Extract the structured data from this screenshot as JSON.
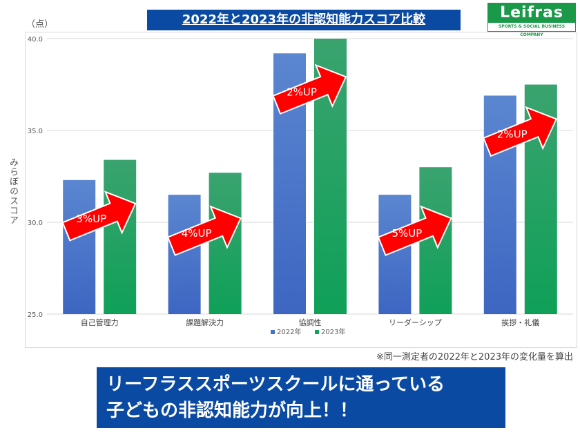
{
  "title": "2022年と2023年の非認知能力スコア比較",
  "logo": {
    "name": "Leifras",
    "tagline": "SPORTS & SOCIAL BUSINESS COMPANY",
    "color": "#1a9a49"
  },
  "unit_label": "（点）",
  "note": "※同一測定者の2022年と2023年の変化量を算出",
  "banner": {
    "line1": "リーフラススポーツスクールに通っている",
    "line2": "子どもの非認知能力が向上！！"
  },
  "chart_data": {
    "type": "bar",
    "ylabel": "みらぼのスコア",
    "ylim": [
      25,
      40
    ],
    "yticks": [
      "25.0",
      "30.0",
      "35.0",
      "40.0"
    ],
    "grid": true,
    "legend_position": "bottom",
    "categories": [
      "自己管理力",
      "課題解決力",
      "協調性",
      "リーダーシップ",
      "挨拶・礼儀"
    ],
    "series": [
      {
        "name": "2022年",
        "color": "#4472c4",
        "values": [
          32.3,
          31.5,
          39.2,
          31.5,
          36.9
        ]
      },
      {
        "name": "2023年",
        "color": "#15a05a",
        "values": [
          33.4,
          32.7,
          40.0,
          33.0,
          37.5
        ]
      }
    ],
    "annotations": [
      "3%UP",
      "4%UP",
      "2%UP",
      "5%UP",
      "2%UP"
    ],
    "annotation_color": "#ff0000"
  }
}
